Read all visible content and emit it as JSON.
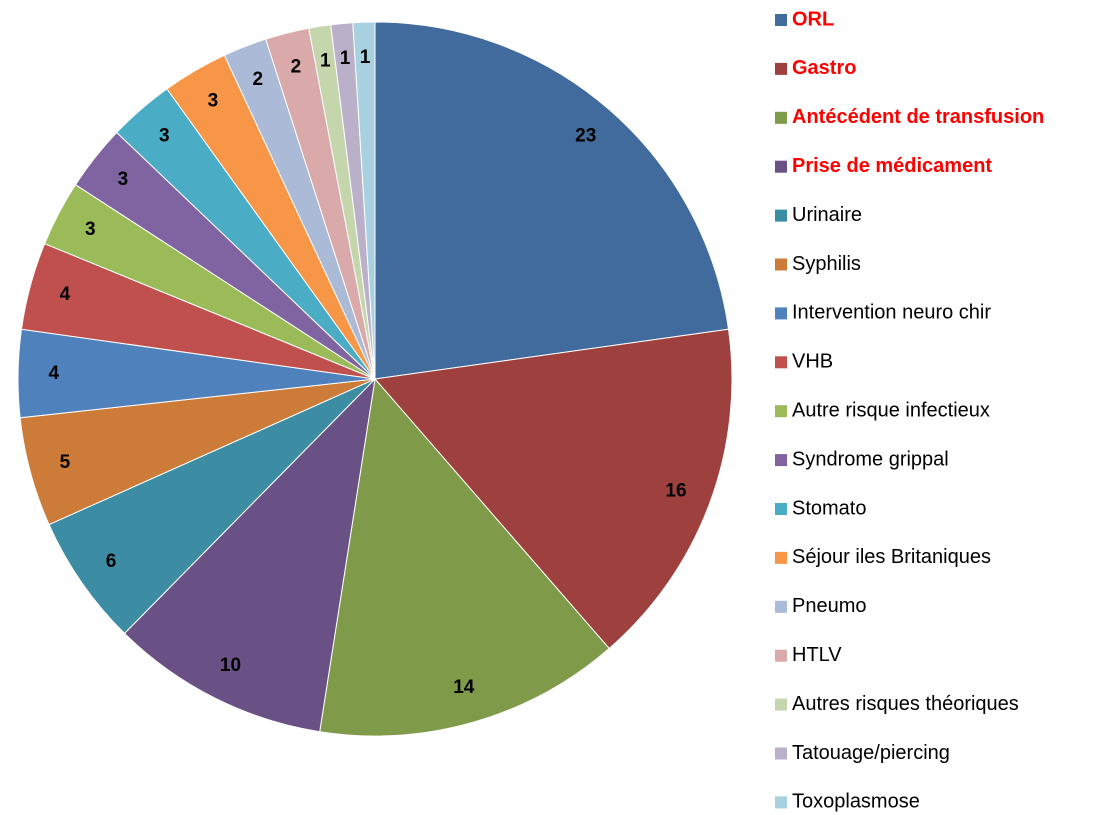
{
  "chart_data": {
    "type": "pie",
    "categories": [
      "ORL",
      "Gastro",
      "Antécédent de transfusion",
      "Prise de médicament",
      "Urinaire",
      "Syphilis",
      "Intervention neuro chir",
      "VHB",
      "Autre risque infectieux",
      "Syndrome grippal",
      "Stomato",
      "Séjour iles Britaniques",
      "Pneumo",
      "HTLV",
      "Autres risques théoriques",
      "Tatouage/piercing",
      "Toxoplasmose"
    ],
    "values": [
      23,
      16,
      14,
      10,
      6,
      5,
      4,
      4,
      3,
      3,
      3,
      3,
      2,
      2,
      1,
      1,
      1
    ],
    "colors": [
      "#416b9c",
      "#9e413e",
      "#7f9a48",
      "#695185",
      "#3c8da3",
      "#cc7b38",
      "#4f81bd",
      "#c0504d",
      "#9bbb59",
      "#8064a2",
      "#4bacc6",
      "#f79646",
      "#aabad7",
      "#d9aaa9",
      "#c6d6ac",
      "#bab0c9",
      "#a7d1de"
    ],
    "legend_text_colors": [
      "#ff0000",
      "#ff0000",
      "#ff0000",
      "#ff0000",
      "#000000",
      "#000000",
      "#000000",
      "#000000",
      "#000000",
      "#000000",
      "#000000",
      "#000000",
      "#000000",
      "#000000",
      "#000000",
      "#000000",
      "#000000"
    ],
    "legend_bold": [
      true,
      true,
      true,
      true,
      false,
      false,
      false,
      false,
      false,
      false,
      false,
      false,
      false,
      false,
      false,
      false,
      false
    ],
    "legend": "right"
  }
}
